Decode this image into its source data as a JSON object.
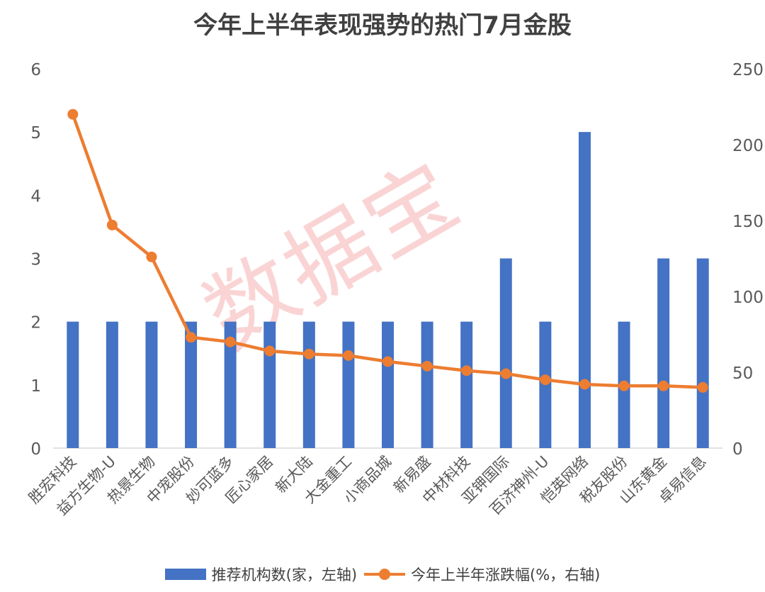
{
  "chart_data": {
    "type": "bar",
    "title": "今年上半年表现强势的热门7月金股",
    "categories": [
      "胜宏科技",
      "益方生物-U",
      "热景生物",
      "中宠股份",
      "妙可蓝多",
      "匠心家居",
      "新大陆",
      "大金重工",
      "小商品城",
      "新易盛",
      "中材科技",
      "亚钾国际",
      "百济神州-U",
      "恺英网络",
      "税友股份",
      "山东黄金",
      "卓易信息"
    ],
    "series": [
      {
        "name": "推荐机构数(家，左轴)",
        "type": "bar",
        "axis": "left",
        "color": "#4472C4",
        "values": [
          2,
          2,
          2,
          2,
          2,
          2,
          2,
          2,
          2,
          2,
          2,
          3,
          2,
          5,
          2,
          3,
          3
        ]
      },
      {
        "name": "今年上半年涨跌幅(%，右轴)",
        "type": "line",
        "axis": "right",
        "color": "#ED7D31",
        "values": [
          220,
          147,
          126,
          73,
          70,
          64,
          62,
          61,
          57,
          54,
          51,
          49,
          45,
          42,
          41,
          41,
          40
        ]
      }
    ],
    "left_axis": {
      "min": 0,
      "max": 6,
      "ticks": [
        0,
        1,
        2,
        3,
        4,
        5,
        6
      ]
    },
    "right_axis": {
      "min": 0,
      "max": 250,
      "ticks": [
        0,
        50,
        100,
        150,
        200,
        250
      ]
    },
    "grid": false,
    "legend_position": "bottom"
  },
  "watermark": "数据宝"
}
